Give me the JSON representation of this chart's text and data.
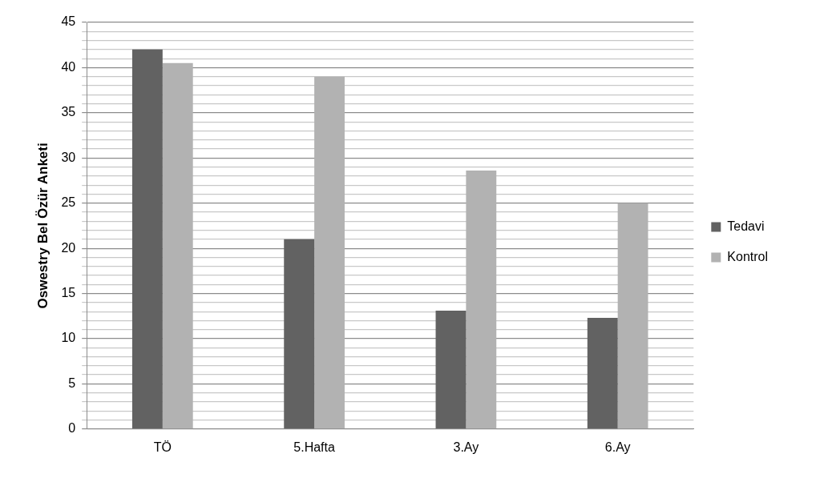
{
  "chart_data": {
    "type": "bar",
    "ylabel": "Oswestry Bel Özür Anketi",
    "categories": [
      "TÖ",
      "5.Hafta",
      "3.Ay",
      "6.Ay"
    ],
    "series": [
      {
        "name": "Tedavi",
        "color": "#626262",
        "values": [
          42,
          21,
          13.1,
          12.3
        ]
      },
      {
        "name": "Kontrol",
        "color": "#b2b2b2",
        "values": [
          40.5,
          39,
          28.6,
          25
        ]
      }
    ],
    "ylim": [
      0,
      45
    ],
    "yticks": [
      0,
      {
        "value": 1,
        "label": null
      },
      {
        "value": 2,
        "label": null
      },
      {
        "value": 3,
        "label": null
      },
      {
        "value": 4,
        "label": null
      },
      5,
      {
        "value": 6,
        "label": null
      },
      {
        "value": 7,
        "label": null
      },
      {
        "value": 8,
        "label": null
      },
      {
        "value": 9,
        "label": null
      },
      10,
      {
        "value": 11,
        "label": null
      },
      {
        "value": 12,
        "label": null
      },
      {
        "value": 13,
        "label": null
      },
      {
        "value": 14,
        "label": null
      },
      15,
      {
        "value": 16,
        "label": null
      },
      {
        "value": 17,
        "label": null
      },
      {
        "value": 18,
        "label": null
      },
      {
        "value": 19,
        "label": null
      },
      20,
      {
        "value": 21,
        "label": null
      },
      {
        "value": 22,
        "label": null
      },
      {
        "value": 23,
        "label": null
      },
      {
        "value": 24,
        "label": null
      },
      25,
      {
        "value": 26,
        "label": null
      },
      {
        "value": 27,
        "label": null
      },
      {
        "value": 28,
        "label": null
      },
      {
        "value": 29,
        "label": null
      },
      30,
      {
        "value": 31,
        "label": null
      },
      {
        "value": 32,
        "label": null
      },
      {
        "value": 33,
        "label": null
      },
      {
        "value": 34,
        "label": null
      },
      35,
      {
        "value": 36,
        "label": null
      },
      {
        "value": 37,
        "label": null
      },
      {
        "value": 38,
        "label": null
      },
      {
        "value": 39,
        "label": null
      },
      40,
      {
        "value": 41,
        "label": null
      },
      {
        "value": 42,
        "label": null
      },
      {
        "value": 43,
        "label": null
      },
      {
        "value": 44,
        "label": null
      },
      45
    ],
    "grid": "y",
    "legend": "right"
  }
}
